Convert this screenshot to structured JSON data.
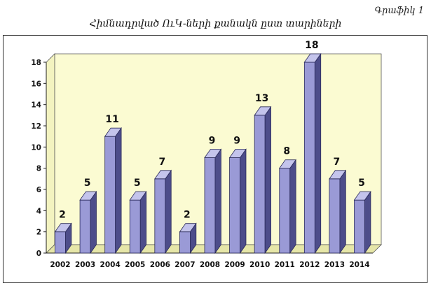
{
  "header": {
    "graph_label": "Գրաֆիկ 1"
  },
  "chart_data": {
    "type": "bar",
    "title": "Հիմնադրված ՈւԿ-ների քանակն ըստ տարիների",
    "categories": [
      "2002",
      "2003",
      "2004",
      "2005",
      "2006",
      "2007",
      "2008",
      "2009",
      "2010",
      "2011",
      "2012",
      "2013",
      "2014"
    ],
    "values": [
      2,
      5,
      11,
      5,
      7,
      2,
      9,
      9,
      13,
      8,
      18,
      7,
      5
    ],
    "ylim": [
      0,
      18
    ],
    "yticks": [
      0,
      2,
      4,
      6,
      8,
      10,
      12,
      14,
      16,
      18
    ],
    "xlabel": "",
    "ylabel": "",
    "grid": false,
    "legend": "none",
    "colors": {
      "bar_front": "#9a9ad6",
      "bar_top": "#c4c4ec",
      "bar_side": "#4d4d8a",
      "plot_back": "#fbfbd2",
      "plot_side": "#f3f3c0",
      "plot_floor": "#e6e6a8"
    }
  }
}
